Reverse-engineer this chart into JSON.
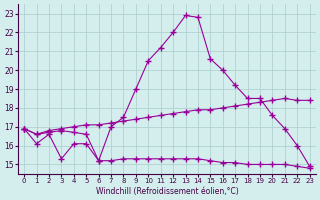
{
  "xlabel": "Windchill (Refroidissement éolien,°C)",
  "bg_color": "#d4eeee",
  "grid_color": "#aacccc",
  "line_color": "#990099",
  "xlim": [
    0,
    23
  ],
  "ylim": [
    14.5,
    23.5
  ],
  "yticks": [
    15,
    16,
    17,
    18,
    19,
    20,
    21,
    22,
    23
  ],
  "xticks": [
    0,
    1,
    2,
    3,
    4,
    5,
    6,
    7,
    8,
    9,
    10,
    11,
    12,
    13,
    14,
    15,
    16,
    17,
    18,
    19,
    20,
    21,
    22,
    23
  ],
  "line1_x": [
    0,
    1,
    2,
    3,
    4,
    5,
    6,
    7,
    8,
    9,
    10,
    11,
    12,
    13,
    14,
    15,
    16,
    17,
    18,
    19,
    20,
    21,
    22,
    23
  ],
  "line1_y": [
    16.9,
    16.1,
    16.6,
    15.3,
    16.1,
    16.1,
    15.2,
    17.0,
    17.5,
    19.0,
    20.5,
    21.2,
    22.0,
    22.9,
    22.8,
    20.6,
    20.0,
    19.2,
    18.5,
    18.5,
    17.6,
    16.9,
    16.0,
    14.9
  ],
  "line2_x": [
    0,
    1,
    2,
    3,
    4,
    5,
    6,
    7,
    8,
    9,
    10,
    11,
    12,
    13,
    14,
    15,
    16,
    17,
    18,
    19,
    20,
    21,
    22,
    23
  ],
  "line2_y": [
    16.9,
    16.6,
    16.8,
    16.9,
    17.0,
    17.1,
    17.1,
    17.2,
    17.3,
    17.4,
    17.5,
    17.6,
    17.7,
    17.8,
    17.9,
    17.9,
    18.0,
    18.1,
    18.2,
    18.3,
    18.4,
    18.5,
    18.4,
    18.4
  ],
  "line3_x": [
    0,
    1,
    2,
    3,
    4,
    5,
    6,
    7,
    8,
    9,
    10,
    11,
    12,
    13,
    14,
    15,
    16,
    17,
    18,
    19,
    20,
    21,
    22,
    23
  ],
  "line3_y": [
    16.9,
    16.6,
    16.7,
    16.8,
    16.7,
    16.6,
    15.2,
    15.2,
    15.3,
    15.3,
    15.3,
    15.3,
    15.3,
    15.3,
    15.3,
    15.2,
    15.1,
    15.1,
    15.0,
    15.0,
    15.0,
    15.0,
    14.9,
    14.8
  ]
}
